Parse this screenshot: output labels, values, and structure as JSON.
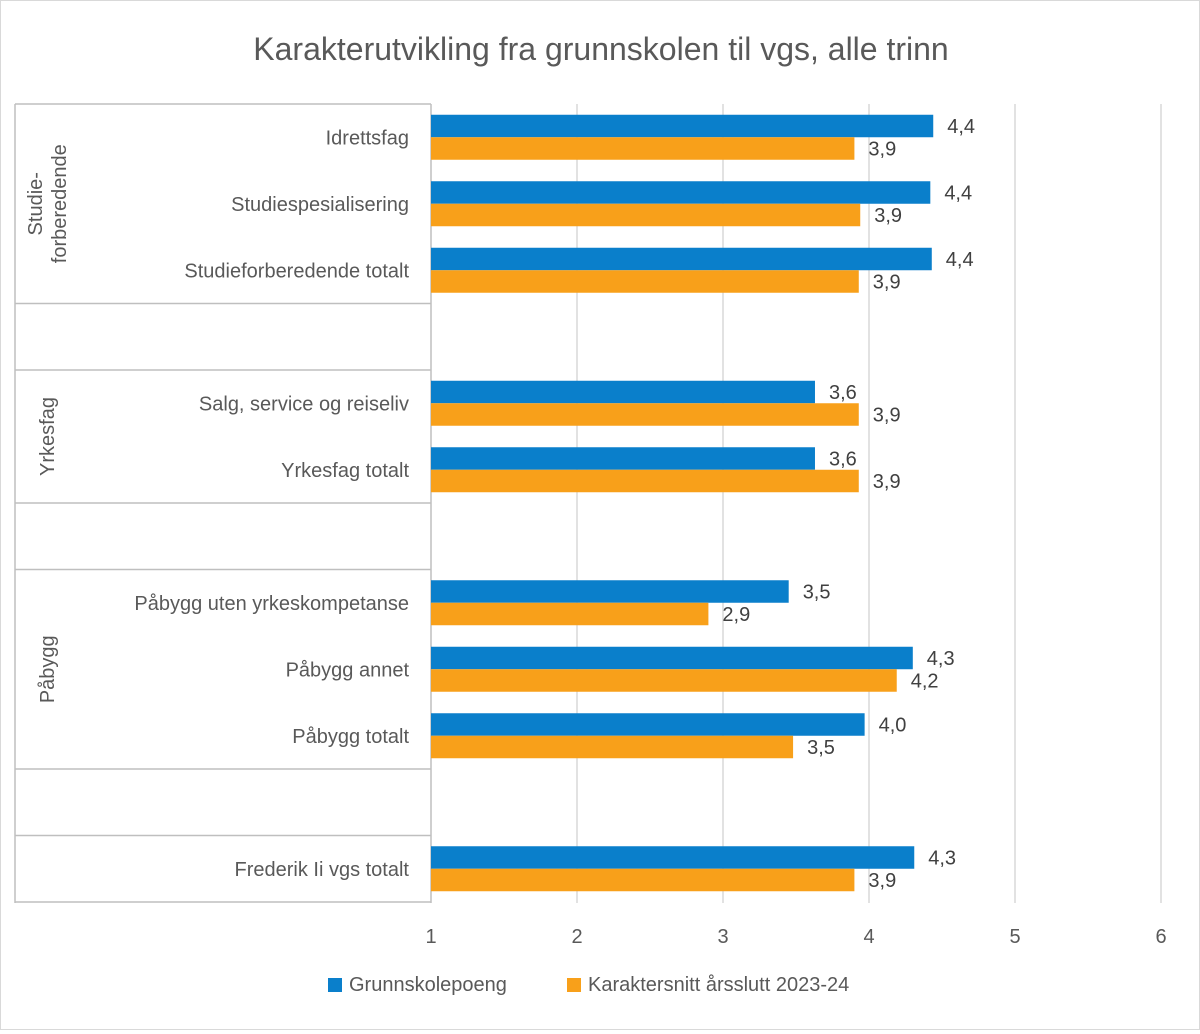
{
  "chart_data": {
    "type": "bar",
    "orientation": "horizontal",
    "title": "Karakterutvikling fra grunnskolen til vgs, alle trinn",
    "xlim": [
      1,
      6
    ],
    "x_ticks": [
      "1",
      "2",
      "3",
      "4",
      "5",
      "6"
    ],
    "grid": true,
    "legend_position": "bottom",
    "groups": [
      {
        "label": "Studie-\nforberedende",
        "categories": [
          "Idrettsfag",
          "Studiespesialisering",
          "Studieforberedende totalt"
        ]
      },
      {
        "label": "Yrkesfag",
        "categories": [
          "Salg, service og reiseliv",
          "Yrkesfag totalt"
        ]
      },
      {
        "label": "Påbygg",
        "categories": [
          "Påbygg uten yrkeskompetanse",
          "Påbygg annet",
          "Påbygg totalt"
        ]
      },
      {
        "label": "",
        "categories": [
          "Frederik Ii vgs totalt"
        ]
      }
    ],
    "series": [
      {
        "name": "Grunnskolepoeng",
        "color": "#0a7fcb",
        "values": [
          4.44,
          4.42,
          4.43,
          3.63,
          3.63,
          3.45,
          4.3,
          3.97,
          4.31
        ],
        "labels": [
          "4,4",
          "4,4",
          "4,4",
          "3,6",
          "3,6",
          "3,5",
          "4,3",
          "4,0",
          "4,3"
        ]
      },
      {
        "name": "Karaktersnitt årsslutt 2023-24",
        "color": "#f8a01a",
        "values": [
          3.9,
          3.94,
          3.93,
          3.93,
          3.93,
          2.9,
          4.19,
          3.48,
          3.9
        ],
        "labels": [
          "3,9",
          "3,9",
          "3,9",
          "3,9",
          "3,9",
          "2,9",
          "4,2",
          "3,5",
          "3,9"
        ]
      }
    ]
  }
}
